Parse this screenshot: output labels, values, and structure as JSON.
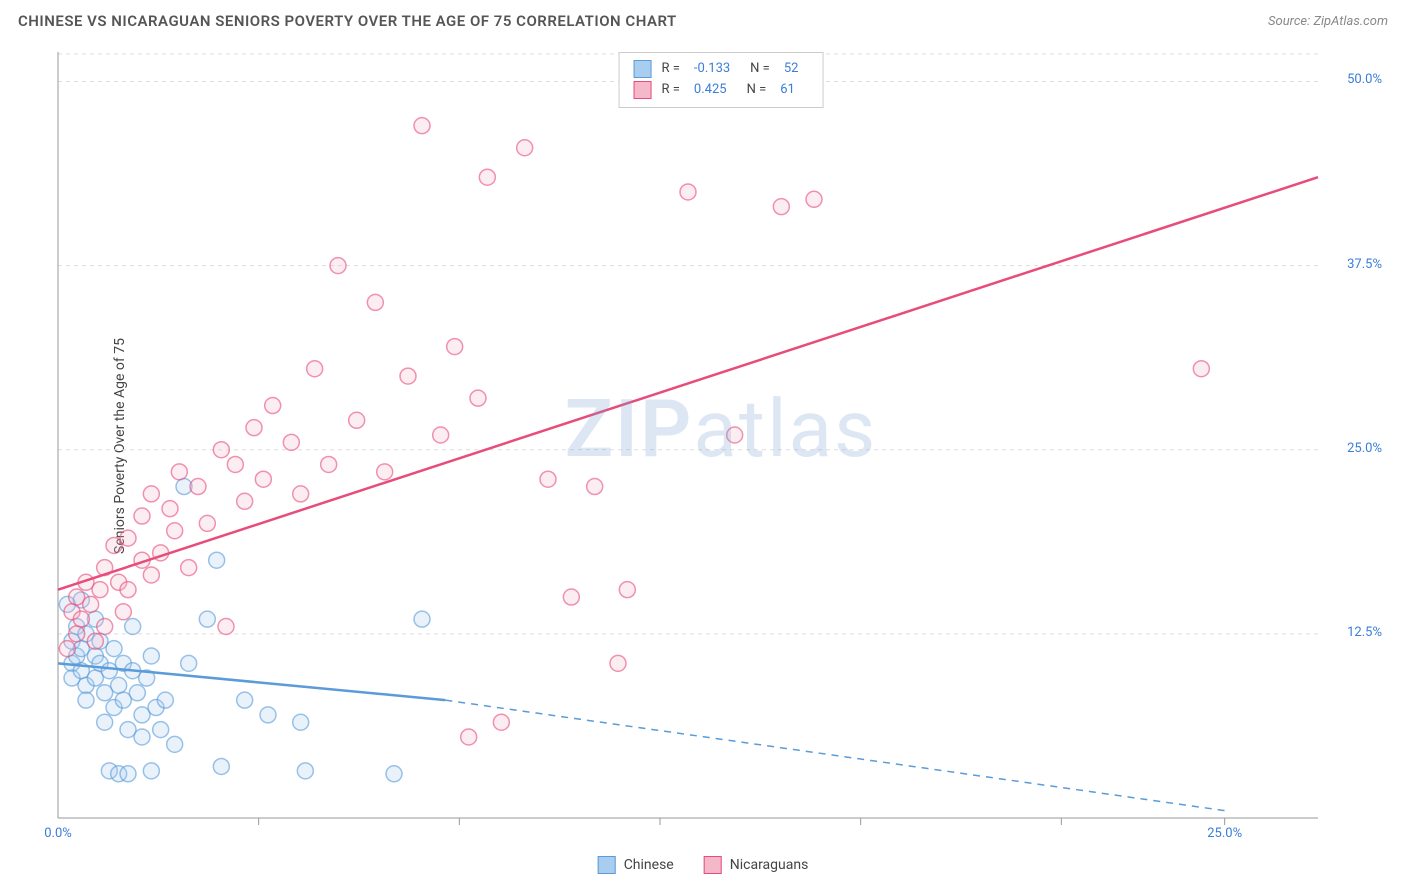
{
  "header": {
    "title": "CHINESE VS NICARAGUAN SENIORS POVERTY OVER THE AGE OF 75 CORRELATION CHART",
    "source_prefix": "Source: ",
    "source_name": "ZipAtlas.com"
  },
  "watermark": {
    "part1": "ZIP",
    "part2": "atlas"
  },
  "chart": {
    "type": "scatter",
    "ylabel": "Seniors Poverty Over the Age of 75",
    "xlim": [
      0,
      27
    ],
    "ylim": [
      0,
      52
    ],
    "x_ticks": [
      0,
      25
    ],
    "x_tick_labels": [
      "0.0%",
      "25.0%"
    ],
    "x_minor_ticks": [
      4.3,
      8.6,
      12.9,
      17.2,
      21.5
    ],
    "y_ticks": [
      12.5,
      25.0,
      37.5,
      50.0
    ],
    "y_tick_labels": [
      "12.5%",
      "25.0%",
      "37.5%",
      "50.0%"
    ],
    "grid_color": "#dddddd",
    "axis_color": "#999999",
    "background_color": "#ffffff",
    "tick_label_color": "#3b7dd8",
    "label_fontsize": 14,
    "tick_fontsize": 13,
    "marker_radius": 8,
    "marker_stroke_width": 1.5,
    "marker_fill_opacity": 0.25,
    "trend_line_width": 2.5,
    "series": {
      "chinese": {
        "label": "Chinese",
        "color": "#5a9bd8",
        "fill": "#a8cdef",
        "R": "-0.133",
        "N": "52",
        "trend": {
          "x1": 0,
          "y1": 10.5,
          "x2": 8.3,
          "y2": 8.0,
          "dash_x2": 25.0,
          "dash_y2": 0.5
        },
        "points": [
          [
            0.2,
            14.5
          ],
          [
            0.3,
            12.0
          ],
          [
            0.3,
            10.5
          ],
          [
            0.4,
            13.0
          ],
          [
            0.4,
            11.0
          ],
          [
            0.3,
            9.5
          ],
          [
            0.5,
            14.8
          ],
          [
            0.5,
            11.5
          ],
          [
            0.5,
            10.0
          ],
          [
            0.6,
            12.5
          ],
          [
            0.6,
            9.0
          ],
          [
            0.6,
            8.0
          ],
          [
            0.8,
            13.5
          ],
          [
            0.8,
            11.0
          ],
          [
            0.8,
            9.5
          ],
          [
            0.9,
            12.0
          ],
          [
            0.9,
            10.5
          ],
          [
            1.0,
            8.5
          ],
          [
            1.0,
            6.5
          ],
          [
            1.1,
            10.0
          ],
          [
            1.1,
            3.2
          ],
          [
            1.2,
            11.5
          ],
          [
            1.2,
            7.5
          ],
          [
            1.3,
            9.0
          ],
          [
            1.3,
            3.0
          ],
          [
            1.4,
            10.5
          ],
          [
            1.4,
            8.0
          ],
          [
            1.5,
            6.0
          ],
          [
            1.5,
            3.0
          ],
          [
            1.6,
            13.0
          ],
          [
            1.6,
            10.0
          ],
          [
            1.7,
            8.5
          ],
          [
            1.8,
            7.0
          ],
          [
            1.8,
            5.5
          ],
          [
            1.9,
            9.5
          ],
          [
            2.0,
            11.0
          ],
          [
            2.0,
            3.2
          ],
          [
            2.1,
            7.5
          ],
          [
            2.2,
            6.0
          ],
          [
            2.3,
            8.0
          ],
          [
            2.5,
            5.0
          ],
          [
            2.7,
            22.5
          ],
          [
            2.8,
            10.5
          ],
          [
            3.2,
            13.5
          ],
          [
            3.4,
            17.5
          ],
          [
            3.5,
            3.5
          ],
          [
            4.0,
            8.0
          ],
          [
            4.5,
            7.0
          ],
          [
            5.2,
            6.5
          ],
          [
            5.3,
            3.2
          ],
          [
            7.2,
            3.0
          ],
          [
            7.8,
            13.5
          ]
        ]
      },
      "nicaraguans": {
        "label": "Nicaraguans",
        "color": "#e84c7a",
        "fill": "#f5b8ca",
        "R": "0.425",
        "N": "61",
        "trend": {
          "x1": 0,
          "y1": 15.5,
          "x2": 27,
          "y2": 43.5
        },
        "points": [
          [
            0.2,
            11.5
          ],
          [
            0.3,
            14.0
          ],
          [
            0.4,
            15.0
          ],
          [
            0.4,
            12.5
          ],
          [
            0.5,
            13.5
          ],
          [
            0.6,
            16.0
          ],
          [
            0.7,
            14.5
          ],
          [
            0.8,
            12.0
          ],
          [
            0.9,
            15.5
          ],
          [
            1.0,
            17.0
          ],
          [
            1.0,
            13.0
          ],
          [
            1.2,
            18.5
          ],
          [
            1.3,
            16.0
          ],
          [
            1.4,
            14.0
          ],
          [
            1.5,
            19.0
          ],
          [
            1.5,
            15.5
          ],
          [
            1.8,
            20.5
          ],
          [
            1.8,
            17.5
          ],
          [
            2.0,
            16.5
          ],
          [
            2.0,
            22.0
          ],
          [
            2.2,
            18.0
          ],
          [
            2.4,
            21.0
          ],
          [
            2.5,
            19.5
          ],
          [
            2.6,
            23.5
          ],
          [
            2.8,
            17.0
          ],
          [
            3.0,
            22.5
          ],
          [
            3.2,
            20.0
          ],
          [
            3.5,
            25.0
          ],
          [
            3.6,
            13.0
          ],
          [
            3.8,
            24.0
          ],
          [
            4.0,
            21.5
          ],
          [
            4.2,
            26.5
          ],
          [
            4.4,
            23.0
          ],
          [
            4.6,
            28.0
          ],
          [
            5.0,
            25.5
          ],
          [
            5.2,
            22.0
          ],
          [
            5.5,
            30.5
          ],
          [
            5.8,
            24.0
          ],
          [
            6.0,
            37.5
          ],
          [
            6.4,
            27.0
          ],
          [
            6.8,
            35.0
          ],
          [
            7.0,
            23.5
          ],
          [
            7.5,
            30.0
          ],
          [
            7.8,
            47.0
          ],
          [
            8.2,
            26.0
          ],
          [
            8.5,
            32.0
          ],
          [
            8.8,
            5.5
          ],
          [
            9.0,
            28.5
          ],
          [
            9.2,
            43.5
          ],
          [
            9.5,
            6.5
          ],
          [
            10.0,
            45.5
          ],
          [
            10.5,
            23.0
          ],
          [
            11.0,
            15.0
          ],
          [
            11.5,
            22.5
          ],
          [
            12.0,
            10.5
          ],
          [
            12.2,
            15.5
          ],
          [
            13.5,
            42.5
          ],
          [
            14.5,
            26.0
          ],
          [
            15.5,
            41.5
          ],
          [
            16.2,
            42.0
          ],
          [
            24.5,
            30.5
          ]
        ]
      }
    }
  },
  "legend_top": {
    "r_label": "R =",
    "n_label": "N ="
  },
  "legend_bottom": {}
}
